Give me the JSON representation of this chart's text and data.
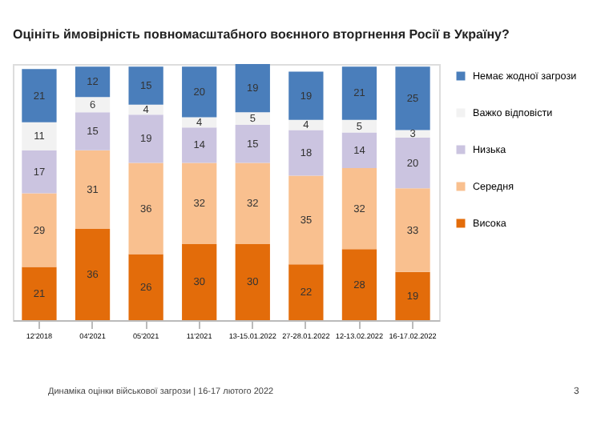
{
  "chart_data": {
    "type": "bar",
    "stacked": true,
    "data_labels": true,
    "legend": "right",
    "grid": false,
    "title": "Оцініть ймовірність повномасштабного воєнного вторгнення Росії в Україну?",
    "categories": [
      "12'2018",
      "04'2021",
      "05'2021",
      "11'2021",
      "13-15.01.2022",
      "27-28.01.2022",
      "12-13.02.2022",
      "16-17.02.2022"
    ],
    "series": [
      {
        "name": "Висока",
        "color": "#e36c0a",
        "values": [
          21,
          36,
          26,
          30,
          30,
          22,
          28,
          19
        ]
      },
      {
        "name": "Середня",
        "color": "#f9c08f",
        "values": [
          29,
          31,
          36,
          32,
          32,
          35,
          32,
          33
        ]
      },
      {
        "name": "Низька",
        "color": "#cbc4e0",
        "values": [
          17,
          15,
          19,
          14,
          15,
          18,
          14,
          20
        ]
      },
      {
        "name": "Важко відповісти",
        "color": "#f2f2f2",
        "values": [
          11,
          6,
          4,
          4,
          5,
          4,
          5,
          3
        ]
      },
      {
        "name": "Немає жодної загрози",
        "color": "#4a7ebb",
        "values": [
          21,
          12,
          15,
          20,
          19,
          19,
          21,
          25
        ]
      }
    ],
    "annotations": [
      "Динаміка оцінки військової загрози | 16-17 лютого 2022",
      "3"
    ]
  }
}
